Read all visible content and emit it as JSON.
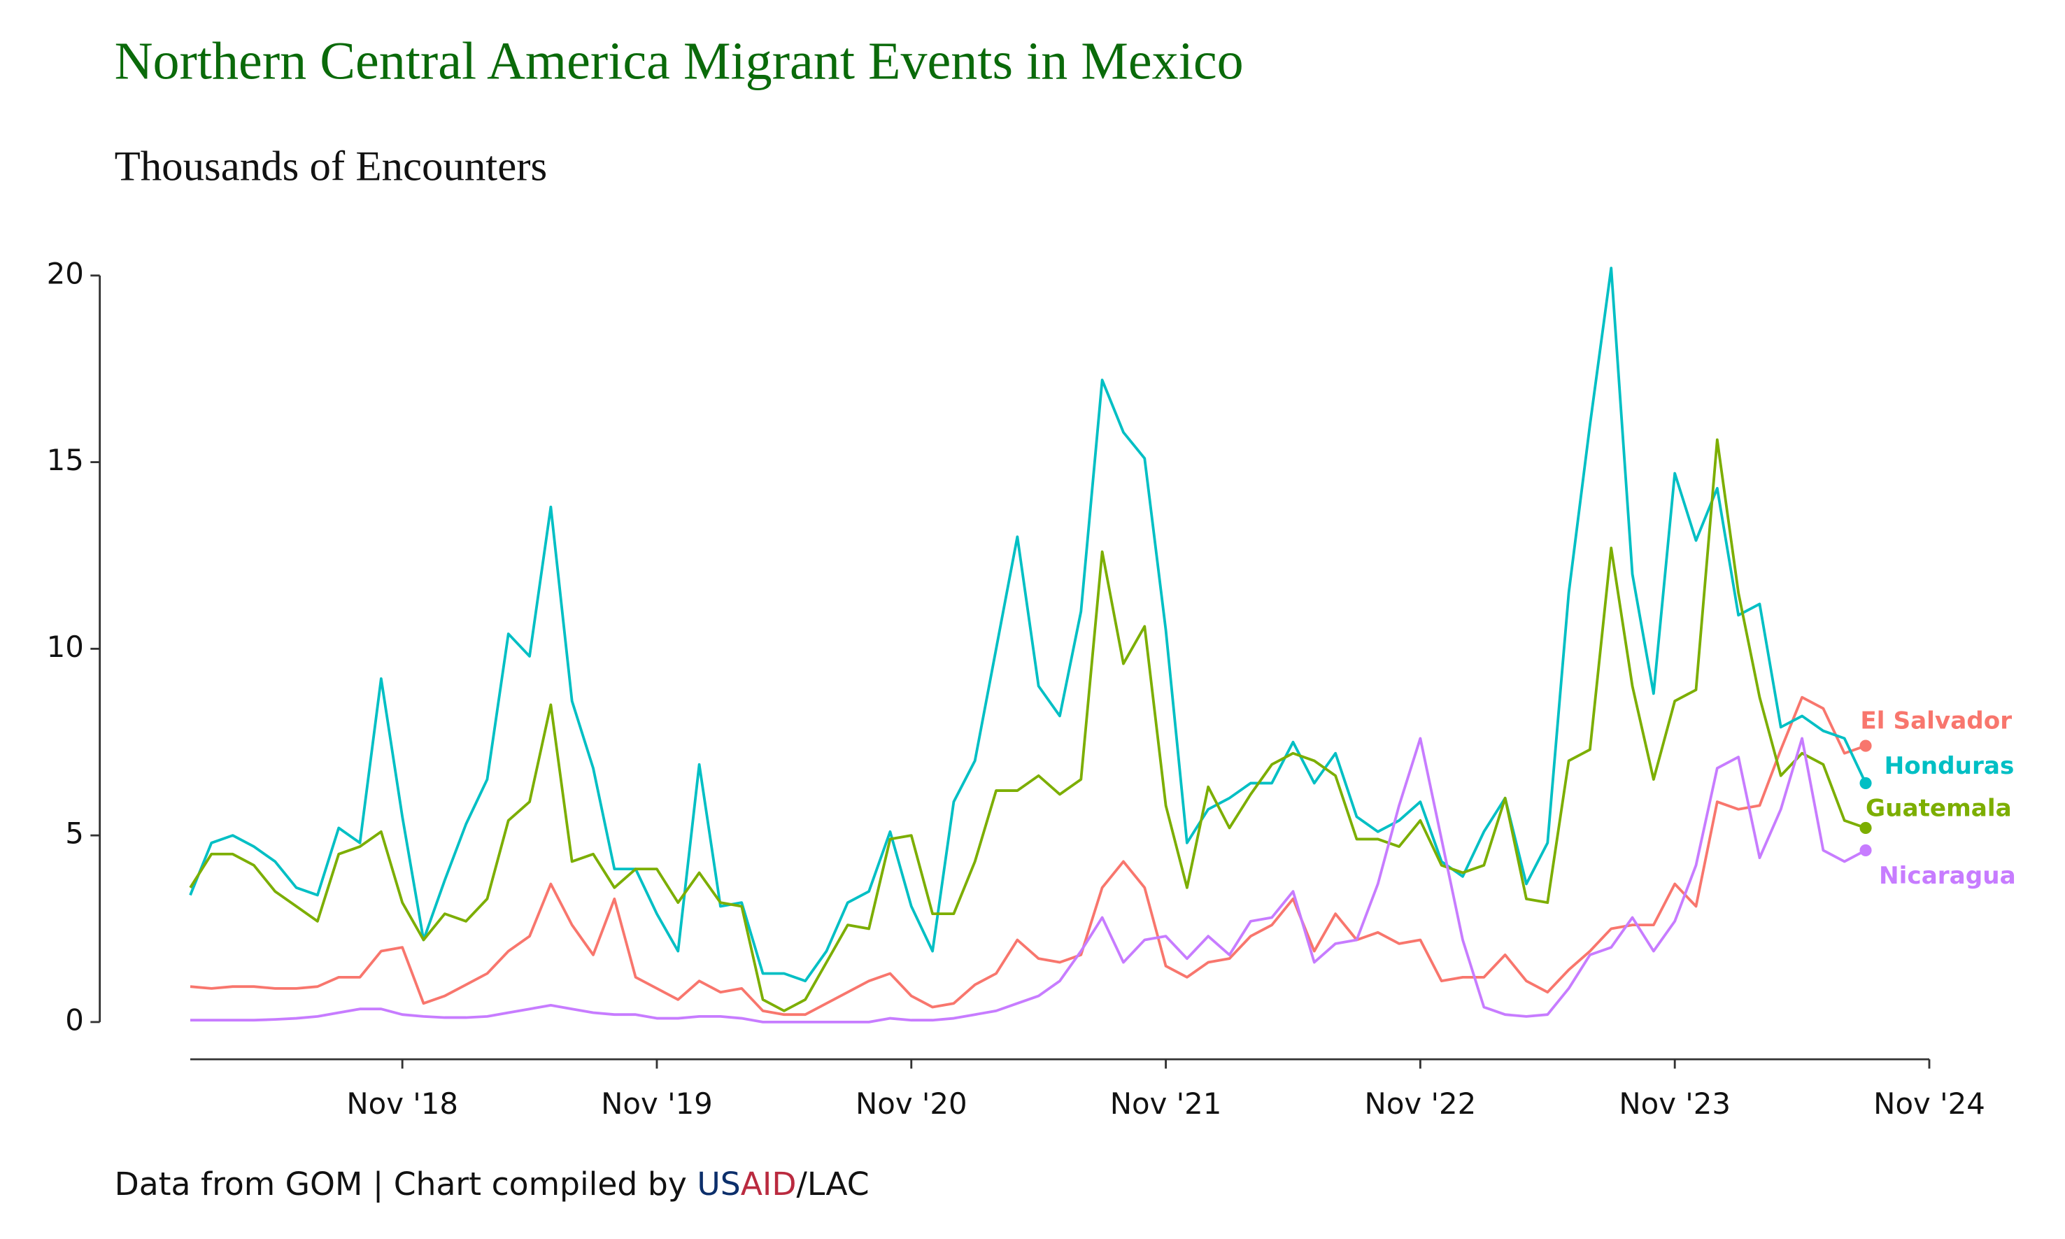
{
  "chart_data": {
    "type": "line",
    "title": "Northern Central America Migrant Events in Mexico",
    "subtitle": "Thousands of Encounters",
    "footer": {
      "text": "Data from GOM | Chart compiled by ",
      "us": "US",
      "aid": "AID",
      "rest": "/LAC"
    },
    "x": [
      "2018-01",
      "2018-02",
      "2018-03",
      "2018-04",
      "2018-05",
      "2018-06",
      "2018-07",
      "2018-08",
      "2018-09",
      "2018-10",
      "2018-11",
      "2018-12",
      "2019-01",
      "2019-02",
      "2019-03",
      "2019-04",
      "2019-05",
      "2019-06",
      "2019-07",
      "2019-08",
      "2019-09",
      "2019-10",
      "2019-11",
      "2019-12",
      "2020-01",
      "2020-02",
      "2020-03",
      "2020-04",
      "2020-05",
      "2020-06",
      "2020-07",
      "2020-08",
      "2020-09",
      "2020-10",
      "2020-11",
      "2020-12",
      "2021-01",
      "2021-02",
      "2021-03",
      "2021-04",
      "2021-05",
      "2021-06",
      "2021-07",
      "2021-08",
      "2021-09",
      "2021-10",
      "2021-11",
      "2021-12",
      "2022-01",
      "2022-02",
      "2022-03",
      "2022-04",
      "2022-05",
      "2022-06",
      "2022-07",
      "2022-08",
      "2022-09",
      "2022-10",
      "2022-11",
      "2022-12",
      "2023-01",
      "2023-02",
      "2023-03",
      "2023-04",
      "2023-05",
      "2023-06",
      "2023-07",
      "2023-08",
      "2023-09",
      "2023-10",
      "2023-11",
      "2023-12",
      "2024-01",
      "2024-02",
      "2024-03",
      "2024-04",
      "2024-05",
      "2024-06",
      "2024-07",
      "2024-08"
    ],
    "xlim": [
      "2018-01",
      "2024-11"
    ],
    "xticks": [
      {
        "value": "2018-11",
        "label": "Nov '18"
      },
      {
        "value": "2019-11",
        "label": "Nov '19"
      },
      {
        "value": "2020-11",
        "label": "Nov '20"
      },
      {
        "value": "2021-11",
        "label": "Nov '21"
      },
      {
        "value": "2022-11",
        "label": "Nov '22"
      },
      {
        "value": "2023-11",
        "label": "Nov '23"
      },
      {
        "value": "2024-11",
        "label": "Nov '24"
      }
    ],
    "ylim": [
      0,
      20
    ],
    "yticks": [
      0,
      5,
      10,
      15,
      20
    ],
    "series": [
      {
        "name": "El Salvador",
        "color": "#F8766D",
        "values": [
          0.95,
          0.9,
          0.95,
          0.95,
          0.9,
          0.9,
          0.95,
          1.2,
          1.2,
          1.9,
          2.0,
          0.5,
          0.7,
          1.0,
          1.3,
          1.9,
          2.3,
          3.7,
          2.6,
          1.8,
          3.3,
          1.2,
          0.9,
          0.6,
          1.1,
          0.8,
          0.9,
          0.3,
          0.2,
          0.2,
          0.5,
          0.8,
          1.1,
          1.3,
          0.7,
          0.4,
          0.5,
          1.0,
          1.3,
          2.2,
          1.7,
          1.6,
          1.8,
          3.6,
          4.3,
          3.6,
          1.5,
          1.2,
          1.6,
          1.7,
          2.3,
          2.6,
          3.3,
          1.9,
          2.9,
          2.2,
          2.4,
          2.1,
          2.2,
          1.1,
          1.2,
          1.2,
          1.8,
          1.1,
          0.8,
          1.4,
          1.9,
          2.5,
          2.6,
          2.6,
          3.7,
          3.1,
          5.9,
          5.7,
          5.8,
          7.3,
          8.7,
          8.4,
          7.2,
          7.4
        ]
      },
      {
        "name": "Honduras",
        "color": "#00BFC4",
        "values": [
          3.4,
          4.8,
          5.0,
          4.7,
          4.3,
          3.6,
          3.4,
          5.2,
          4.8,
          9.2,
          5.5,
          2.2,
          3.8,
          5.3,
          6.5,
          10.4,
          9.8,
          13.8,
          8.6,
          6.8,
          4.1,
          4.1,
          2.9,
          1.9,
          6.9,
          3.1,
          3.2,
          1.3,
          1.3,
          1.1,
          1.9,
          3.2,
          3.5,
          5.1,
          3.1,
          1.9,
          5.9,
          7.0,
          10.0,
          13.0,
          9.0,
          8.2,
          11.0,
          17.2,
          15.8,
          15.1,
          10.5,
          4.8,
          5.7,
          6.0,
          6.4,
          6.4,
          7.5,
          6.4,
          7.2,
          5.5,
          5.1,
          5.4,
          5.9,
          4.3,
          3.9,
          5.1,
          6.0,
          3.7,
          4.8,
          11.5,
          16.0,
          20.2,
          12.0,
          8.8,
          14.7,
          12.9,
          14.3,
          10.9,
          11.2,
          7.9,
          8.2,
          7.8,
          7.6,
          6.4
        ]
      },
      {
        "name": "Guatemala",
        "color": "#7CAE00",
        "values": [
          3.6,
          4.5,
          4.5,
          4.2,
          3.5,
          3.1,
          2.7,
          4.5,
          4.7,
          5.1,
          3.2,
          2.2,
          2.9,
          2.7,
          3.3,
          5.4,
          5.9,
          8.5,
          4.3,
          4.5,
          3.6,
          4.1,
          4.1,
          3.2,
          4.0,
          3.2,
          3.1,
          0.6,
          0.3,
          0.6,
          1.6,
          2.6,
          2.5,
          4.9,
          5.0,
          2.9,
          2.9,
          4.3,
          6.2,
          6.2,
          6.6,
          6.1,
          6.5,
          12.6,
          9.6,
          10.6,
          5.8,
          3.6,
          6.3,
          5.2,
          6.1,
          6.9,
          7.2,
          7.0,
          6.6,
          4.9,
          4.9,
          4.7,
          5.4,
          4.2,
          4.0,
          4.2,
          6.0,
          3.3,
          3.2,
          7.0,
          7.3,
          12.7,
          9.0,
          6.5,
          8.6,
          8.9,
          15.6,
          11.5,
          8.7,
          6.6,
          7.2,
          6.9,
          5.4,
          5.2
        ]
      },
      {
        "name": "Nicaragua",
        "color": "#C77CFF",
        "values": [
          0.05,
          0.05,
          0.05,
          0.05,
          0.07,
          0.1,
          0.15,
          0.25,
          0.35,
          0.35,
          0.2,
          0.15,
          0.12,
          0.12,
          0.15,
          0.25,
          0.35,
          0.45,
          0.35,
          0.25,
          0.2,
          0.2,
          0.1,
          0.1,
          0.15,
          0.15,
          0.1,
          0.0,
          0.0,
          0.0,
          0.0,
          0.0,
          0.0,
          0.1,
          0.05,
          0.05,
          0.1,
          0.2,
          0.3,
          0.5,
          0.7,
          1.1,
          1.9,
          2.8,
          1.6,
          2.2,
          2.3,
          1.7,
          2.3,
          1.8,
          2.7,
          2.8,
          3.5,
          1.6,
          2.1,
          2.2,
          3.7,
          5.8,
          7.6,
          4.9,
          2.2,
          0.4,
          0.2,
          0.15,
          0.2,
          0.9,
          1.8,
          2.0,
          2.8,
          1.9,
          2.7,
          4.2,
          6.8,
          7.1,
          4.4,
          5.7,
          7.6,
          4.6,
          4.3,
          4.6
        ]
      }
    ]
  }
}
